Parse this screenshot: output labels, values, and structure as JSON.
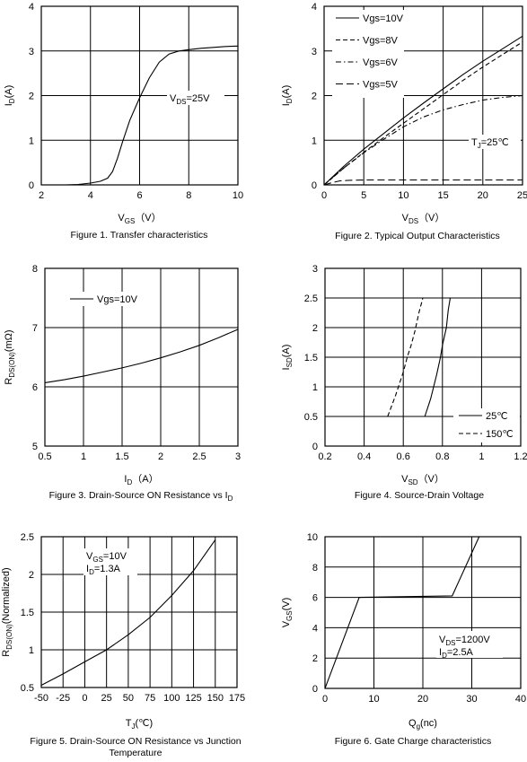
{
  "chart_data": [
    {
      "type": "line",
      "caption": "Figure 1. Transfer characteristics",
      "xlabel": {
        "main": "V",
        "sub": "GS",
        "post": "（V）"
      },
      "ylabel": {
        "main": "I",
        "sub": "D",
        "post": "(A)"
      },
      "xlim": [
        2,
        10
      ],
      "ylim": [
        0,
        4
      ],
      "xticks": [
        2,
        4,
        6,
        8,
        10
      ],
      "yticks": [
        0,
        1,
        2,
        3,
        4
      ],
      "annotations": [
        {
          "main": "V",
          "sub": "DS",
          "post": "=25V"
        }
      ],
      "series": [
        {
          "style": "solid",
          "x": [
            3.0,
            3.5,
            4.0,
            4.4,
            4.7,
            4.9,
            5.1,
            5.3,
            5.6,
            6.0,
            6.4,
            6.8,
            7.2,
            7.6,
            8.0,
            8.5,
            9.0,
            9.5,
            10.0
          ],
          "y": [
            0.0,
            0.01,
            0.04,
            0.08,
            0.15,
            0.3,
            0.6,
            0.95,
            1.45,
            1.95,
            2.4,
            2.75,
            2.93,
            3.0,
            3.03,
            3.06,
            3.08,
            3.1,
            3.11
          ]
        }
      ]
    },
    {
      "type": "line",
      "caption": "Figure 2. Typical Output Characteristics",
      "xlabel": {
        "main": "V",
        "sub": "DS",
        "post": "（V）"
      },
      "ylabel": {
        "main": "I",
        "sub": "D",
        "post": "(A)"
      },
      "xlim": [
        0,
        25
      ],
      "ylim": [
        0,
        4
      ],
      "xticks": [
        0,
        5,
        10,
        15,
        20,
        25
      ],
      "yticks": [
        0,
        1,
        2,
        3,
        4
      ],
      "legend": [
        "Vgs=10V",
        "Vgs=8V",
        "Vgs=6V",
        "Vgs=5V"
      ],
      "annotations": [
        {
          "main": "T",
          "sub": "J",
          "post": "=25℃"
        }
      ],
      "series": [
        {
          "name": "Vgs=10V",
          "style": "solid",
          "x": [
            0,
            2.5,
            5,
            7.5,
            10,
            12.5,
            15,
            17.5,
            20,
            22.5,
            25
          ],
          "y": [
            0,
            0.42,
            0.8,
            1.15,
            1.5,
            1.83,
            2.15,
            2.47,
            2.77,
            3.05,
            3.33
          ]
        },
        {
          "name": "Vgs=8V",
          "style": "dash",
          "x": [
            0,
            2.5,
            5,
            7.5,
            10,
            12.5,
            15,
            17.5,
            20,
            22.5,
            25
          ],
          "y": [
            0,
            0.38,
            0.73,
            1.06,
            1.38,
            1.7,
            2.02,
            2.34,
            2.64,
            2.92,
            3.2
          ]
        },
        {
          "name": "Vgs=6V",
          "style": "dashdot",
          "x": [
            0,
            2.5,
            5,
            7.5,
            10,
            12.5,
            15,
            17.5,
            20,
            22.5,
            25
          ],
          "y": [
            0,
            0.38,
            0.72,
            1.02,
            1.3,
            1.52,
            1.68,
            1.8,
            1.9,
            1.96,
            2.0
          ]
        },
        {
          "name": "Vgs=5V",
          "style": "longdash",
          "x": [
            0,
            1,
            2,
            3,
            5,
            8,
            12,
            16,
            20,
            25
          ],
          "y": [
            0,
            0.05,
            0.09,
            0.1,
            0.11,
            0.11,
            0.11,
            0.11,
            0.11,
            0.11
          ]
        }
      ]
    },
    {
      "type": "line",
      "caption": {
        "main": "Figure 3. Drain-Source ON Resistance vs I",
        "sub": "D",
        "post": ""
      },
      "xlabel": {
        "main": "I",
        "sub": "D",
        "post": "（A）"
      },
      "ylabel": {
        "main": "R",
        "sub": "DS(ON)",
        "post": "(mΩ)"
      },
      "xlim": [
        0.5,
        3
      ],
      "ylim": [
        5,
        8
      ],
      "xticks": [
        0.5,
        1,
        1.5,
        2,
        2.5,
        3
      ],
      "yticks": [
        5,
        6,
        7,
        8
      ],
      "legend": [
        "Vgs=10V"
      ],
      "series": [
        {
          "name": "Vgs=10V",
          "style": "solid",
          "x": [
            0.5,
            0.75,
            1.0,
            1.25,
            1.5,
            1.75,
            2.0,
            2.25,
            2.5,
            2.75,
            3.0
          ],
          "y": [
            6.07,
            6.12,
            6.18,
            6.25,
            6.32,
            6.4,
            6.49,
            6.59,
            6.7,
            6.83,
            6.97
          ]
        }
      ]
    },
    {
      "type": "line",
      "caption": "Figure 4. Source-Drain Voltage",
      "xlabel": {
        "main": "V",
        "sub": "SD",
        "post": "（V）"
      },
      "ylabel": {
        "main": "I",
        "sub": "SD",
        "post": "(A)"
      },
      "xlim": [
        0.2,
        1.2
      ],
      "ylim": [
        0,
        3
      ],
      "xticks": [
        0.2,
        0.4,
        0.6,
        0.8,
        1,
        1.2
      ],
      "yticks": [
        0,
        0.5,
        1,
        1.5,
        2,
        2.5,
        3
      ],
      "legend": [
        "25℃",
        "150℃"
      ],
      "series": [
        {
          "name": "25℃",
          "style": "solid",
          "x": [
            0.71,
            0.74,
            0.77,
            0.79,
            0.8,
            0.82,
            0.83,
            0.84
          ],
          "y": [
            0.5,
            0.8,
            1.2,
            1.5,
            1.7,
            2.0,
            2.3,
            2.5
          ]
        },
        {
          "name": "150℃",
          "style": "dash",
          "x": [
            0.52,
            0.56,
            0.6,
            0.62,
            0.64,
            0.66,
            0.68,
            0.7
          ],
          "y": [
            0.5,
            0.85,
            1.25,
            1.5,
            1.7,
            1.95,
            2.25,
            2.5
          ]
        }
      ]
    },
    {
      "type": "line",
      "caption": [
        "Figure 5. Drain-Source ON Resistance vs Junction",
        "Temperature"
      ],
      "xlabel": {
        "main": "T",
        "sub": "J",
        "post": "(℃)"
      },
      "ylabel": {
        "main": "R",
        "sub": "DS(ON)",
        "post": "(Normalized)"
      },
      "xlim": [
        -50,
        175
      ],
      "ylim": [
        0.5,
        2.5
      ],
      "xticks": [
        -50,
        -25,
        0,
        25,
        50,
        75,
        100,
        125,
        150,
        175
      ],
      "yticks": [
        0.5,
        1,
        1.5,
        2,
        2.5
      ],
      "annotations": [
        {
          "main": "V",
          "sub": "GS",
          "post": "=10V"
        },
        {
          "main": "I",
          "sub": "D",
          "post": "=1.3A"
        }
      ],
      "series": [
        {
          "style": "solid",
          "x": [
            -50,
            -25,
            0,
            25,
            50,
            75,
            100,
            125,
            150
          ],
          "y": [
            0.53,
            0.68,
            0.84,
            1.0,
            1.2,
            1.43,
            1.72,
            2.05,
            2.46
          ]
        }
      ]
    },
    {
      "type": "line",
      "caption": "Figure 6. Gate Charge characteristics",
      "xlabel": {
        "main": "Q",
        "sub": "g",
        "post": "(nc)"
      },
      "ylabel": {
        "main": "V",
        "sub": "GS",
        "post": "(V)"
      },
      "xlim": [
        0,
        40
      ],
      "ylim": [
        0,
        10
      ],
      "xticks": [
        0,
        10,
        20,
        30,
        40
      ],
      "yticks": [
        0,
        2,
        4,
        6,
        8,
        10
      ],
      "annotations": [
        {
          "main": "V",
          "sub": "DS",
          "post": "=1200V"
        },
        {
          "main": "I",
          "sub": "D",
          "post": "=2.5A"
        }
      ],
      "series": [
        {
          "style": "solid",
          "x": [
            0,
            7,
            26,
            31.5
          ],
          "y": [
            0,
            6.0,
            6.1,
            10
          ]
        }
      ]
    }
  ]
}
